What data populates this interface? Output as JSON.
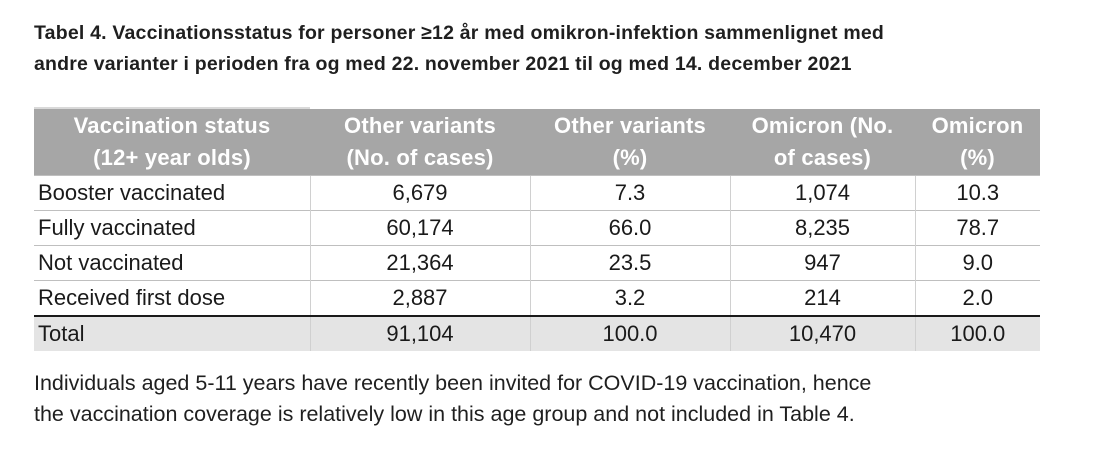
{
  "title_lines": [
    "Tabel 4. Vaccinationsstatus for personer ≥12 år med omikron-infektion sammenlignet med",
    "andre varianter i perioden fra og med 22. november 2021 til og med 14. december 2021"
  ],
  "table": {
    "headers": [
      [
        "Vaccination status",
        "(12+ year olds)"
      ],
      [
        "Other variants",
        "(No. of cases)"
      ],
      [
        "Other variants",
        "(%)"
      ],
      [
        "Omicron (No.",
        "of cases)"
      ],
      [
        "Omicron",
        "(%)"
      ]
    ],
    "rows": [
      [
        "Booster vaccinated",
        "6,679",
        "7.3",
        "1,074",
        "10.3"
      ],
      [
        "Fully vaccinated",
        "60,174",
        "66.0",
        "8,235",
        "78.7"
      ],
      [
        "Not vaccinated",
        "21,364",
        "23.5",
        "947",
        "9.0"
      ],
      [
        "Received first dose",
        "2,887",
        "3.2",
        "214",
        "2.0"
      ]
    ],
    "total": [
      "Total",
      "91,104",
      "100.0",
      "10,470",
      "100.0"
    ]
  },
  "note_lines": [
    "Individuals aged 5-11 years have recently been invited for COVID-19 vaccination, hence",
    "the vaccination coverage is relatively low in this age group and not included in Table 4."
  ]
}
